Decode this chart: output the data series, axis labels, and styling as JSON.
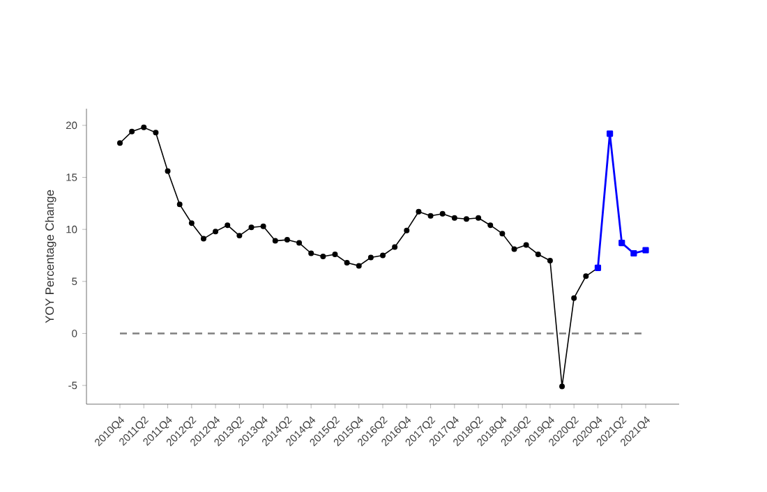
{
  "chart_data": {
    "type": "line",
    "ylabel": "YOY Percentage Change",
    "categories": [
      "2010Q4",
      null,
      "2011Q2",
      null,
      "2011Q4",
      null,
      "2012Q2",
      null,
      "2012Q4",
      null,
      "2013Q2",
      null,
      "2013Q4",
      null,
      "2014Q2",
      null,
      "2014Q4",
      null,
      "2015Q2",
      null,
      "2015Q4",
      null,
      "2016Q2",
      null,
      "2016Q4",
      null,
      "2017Q2",
      null,
      "2017Q4",
      null,
      "2018Q2",
      null,
      "2018Q4",
      null,
      "2019Q2",
      null,
      "2019Q4",
      null,
      "2020Q2",
      null,
      "2020Q4",
      null,
      "2021Q2",
      null,
      "2021Q4"
    ],
    "series": [
      {
        "color": "#000000",
        "marker": "circle",
        "values": [
          18.3,
          19.4,
          19.8,
          19.3,
          15.6,
          12.4,
          10.6,
          9.1,
          9.8,
          10.4,
          9.4,
          10.2,
          10.3,
          8.9,
          9.0,
          8.7,
          7.7,
          7.4,
          7.6,
          6.8,
          6.5,
          7.3,
          7.5,
          8.3,
          9.9,
          11.7,
          11.3,
          11.5,
          11.1,
          11.0,
          11.1,
          10.4,
          9.6,
          8.1,
          8.5,
          7.6,
          7.0,
          -5.1,
          3.4,
          5.5,
          6.3,
          null,
          null,
          null,
          null
        ]
      },
      {
        "color": "#0000ff",
        "marker": "square",
        "values": [
          null,
          null,
          null,
          null,
          null,
          null,
          null,
          null,
          null,
          null,
          null,
          null,
          null,
          null,
          null,
          null,
          null,
          null,
          null,
          null,
          null,
          null,
          null,
          null,
          null,
          null,
          null,
          null,
          null,
          null,
          null,
          null,
          null,
          null,
          null,
          null,
          null,
          null,
          null,
          null,
          6.3,
          19.2,
          8.7,
          7.7,
          8.0
        ]
      }
    ],
    "ylim": [
      -6.8,
      21.6
    ],
    "yticks": [
      -5,
      0,
      5,
      10,
      15,
      20
    ],
    "ref_lines": [
      {
        "axis": "y",
        "value": 0,
        "color": "#808080",
        "line_style": "dashed"
      }
    ],
    "grid": false
  }
}
